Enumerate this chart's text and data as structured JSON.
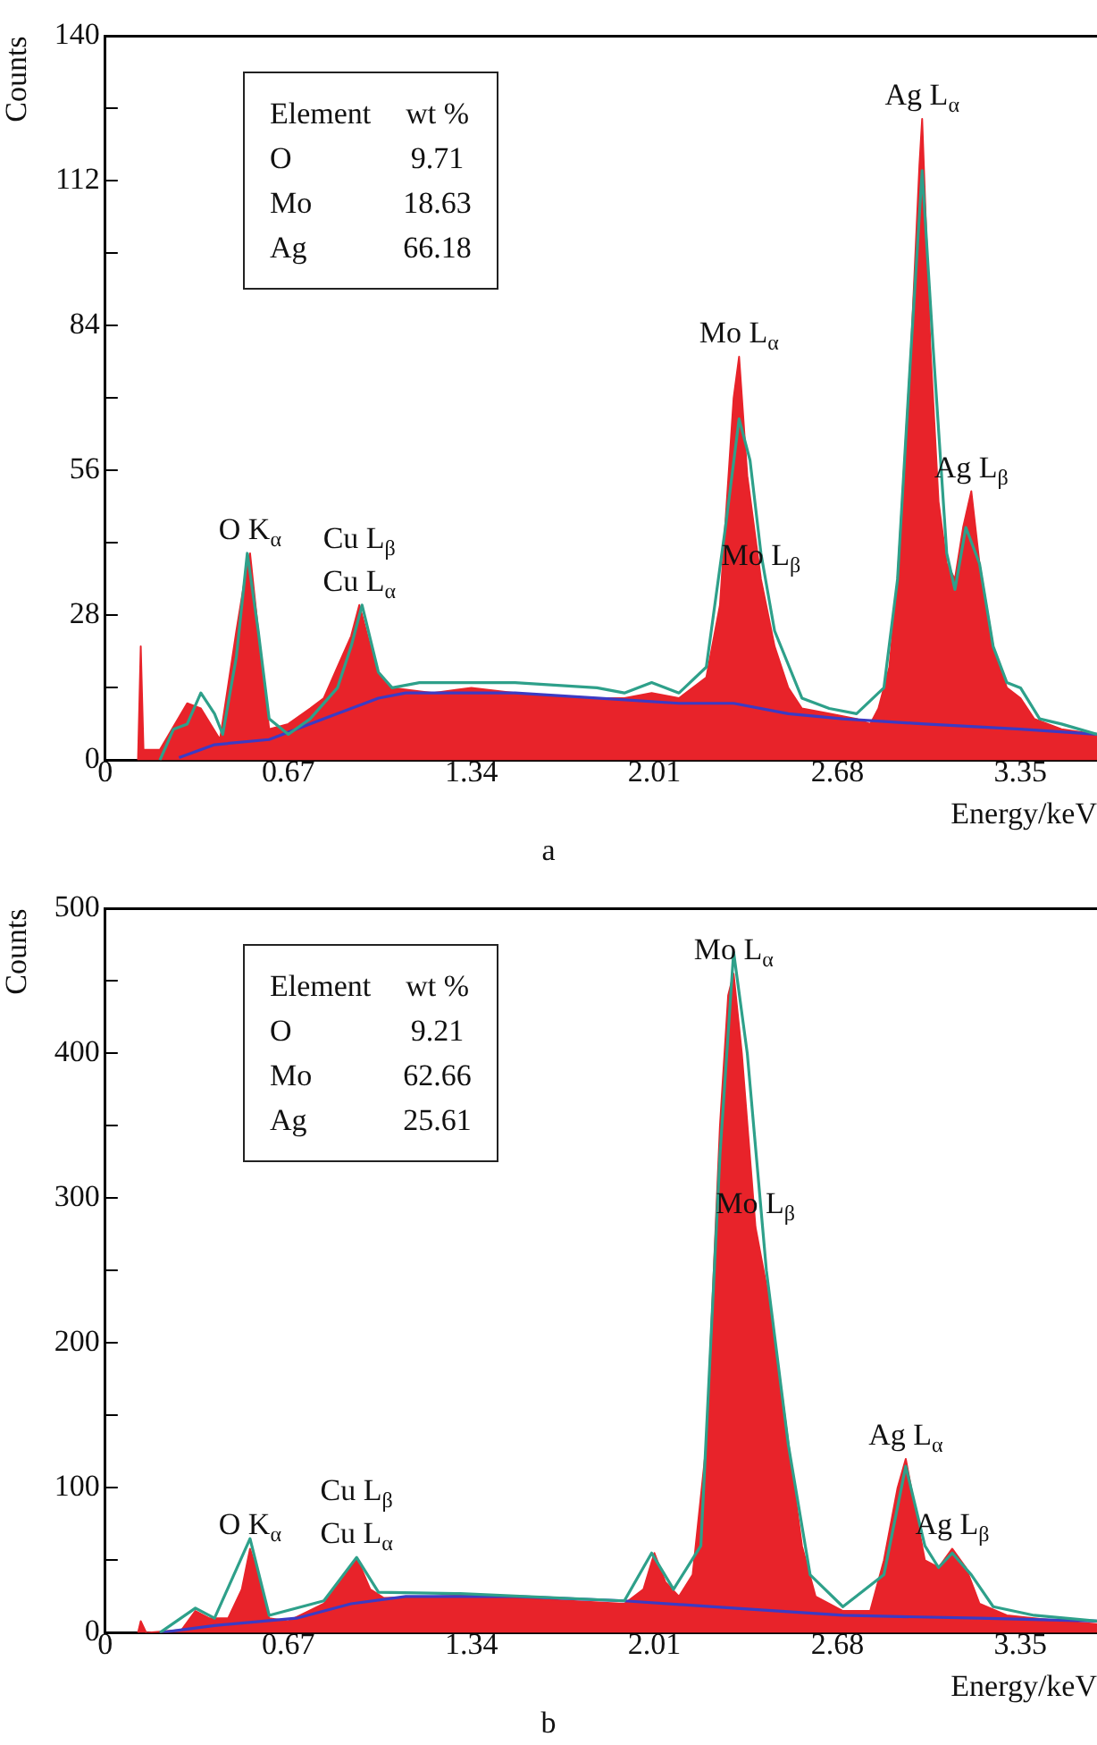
{
  "chart_data": [
    {
      "type": "area",
      "xlabel": "Energy/keV",
      "ylabel": "Counts",
      "xlim": [
        0,
        3.63
      ],
      "xticks": [
        0,
        0.67,
        1.34,
        2.01,
        2.68,
        3.35
      ],
      "ylim": [
        0,
        140
      ],
      "yticks": [
        0,
        {
          "value": 14,
          "label": null
        },
        28,
        {
          "value": 42,
          "label": null
        },
        56,
        {
          "value": 70,
          "label": null
        },
        84,
        {
          "value": 98,
          "label": null
        },
        112,
        {
          "value": 126,
          "label": null
        },
        140
      ],
      "series": [
        {
          "color": "#e8232a",
          "x": [
            0.12,
            0.13,
            0.14,
            0.2,
            0.3,
            0.35,
            0.42,
            0.48,
            0.52,
            0.53,
            0.56,
            0.6,
            0.67,
            0.75,
            0.8,
            0.85,
            0.9,
            0.93,
            0.97,
            1.0,
            1.05,
            1.2,
            1.34,
            1.5,
            1.7,
            1.9,
            2.0,
            2.1,
            2.2,
            2.25,
            2.3,
            2.32,
            2.35,
            2.4,
            2.45,
            2.5,
            2.55,
            2.65,
            2.75,
            2.8,
            2.83,
            2.87,
            2.9,
            2.95,
            2.98,
            2.99,
            3.02,
            3.05,
            3.08,
            3.11,
            3.14,
            3.17,
            3.2,
            3.25,
            3.3,
            3.35,
            3.4,
            3.5,
            3.63
          ],
          "values": [
            0,
            22,
            2,
            2,
            11,
            10,
            4,
            25,
            38,
            40,
            25,
            6,
            7,
            10,
            12,
            18,
            24,
            30,
            22,
            17,
            14,
            13,
            14,
            13,
            12,
            12,
            13,
            12,
            16,
            30,
            70,
            78,
            55,
            35,
            22,
            14,
            10,
            9,
            8,
            7,
            10,
            18,
            35,
            80,
            115,
            124,
            80,
            50,
            38,
            35,
            45,
            52,
            38,
            22,
            14,
            12,
            8,
            6,
            5
          ]
        },
        {
          "type": "line",
          "color": "#2ea08a",
          "x": [
            0.2,
            0.25,
            0.3,
            0.35,
            0.4,
            0.43,
            0.48,
            0.52,
            0.56,
            0.6,
            0.67,
            0.75,
            0.85,
            0.9,
            0.94,
            1.0,
            1.05,
            1.15,
            1.5,
            1.8,
            1.9,
            2.0,
            2.1,
            2.2,
            2.27,
            2.32,
            2.36,
            2.4,
            2.45,
            2.55,
            2.65,
            2.75,
            2.85,
            2.9,
            2.95,
            2.99,
            3.03,
            3.08,
            3.11,
            3.15,
            3.2,
            3.25,
            3.3,
            3.35,
            3.42,
            3.5,
            3.63
          ],
          "values": [
            0,
            6,
            7,
            13,
            9,
            5,
            20,
            40,
            25,
            8,
            5,
            8,
            14,
            22,
            30,
            17,
            14,
            15,
            15,
            14,
            13,
            15,
            13,
            18,
            45,
            66,
            58,
            40,
            25,
            12,
            10,
            9,
            14,
            35,
            80,
            114,
            80,
            40,
            33,
            45,
            38,
            22,
            15,
            14,
            8,
            7,
            5
          ]
        },
        {
          "type": "line",
          "color": "#3b3bc4",
          "x": [
            0.27,
            0.4,
            0.6,
            0.8,
            1.0,
            1.1,
            1.5,
            1.8,
            2.1,
            2.3,
            2.5,
            2.7,
            3.0,
            3.35,
            3.63
          ],
          "values": [
            0.5,
            3,
            4,
            8,
            12,
            13,
            13,
            12,
            11,
            11,
            9,
            8,
            7,
            6,
            5
          ]
        }
      ],
      "annotations": [
        "Element",
        "wt %",
        "O",
        "9.71",
        "Mo",
        "18.63",
        "Ag",
        "66.18",
        "a",
        {
          "text": "O K$_{α}$",
          "x": 0.53,
          "y": 40
        },
        {
          "text": "Cu L$_{β}$",
          "x": 0.93,
          "y": 30
        },
        {
          "text": "Cu L$_{α}$",
          "x": 0.93,
          "y": 30
        },
        {
          "text": "Mo L$_{α}$",
          "x": 2.32,
          "y": 78
        },
        {
          "text": "Mo L$_{β}$",
          "x": 2.4,
          "y": 35
        },
        {
          "text": "Ag L$_{α}$",
          "x": 2.99,
          "y": 124
        },
        {
          "text": "Ag L$_{β}$",
          "x": 3.17,
          "y": 52
        }
      ]
    },
    {
      "type": "area",
      "xlabel": "Energy/keV",
      "ylabel": "Counts",
      "xlim": [
        0,
        3.63
      ],
      "xticks": [
        0,
        0.67,
        1.34,
        2.01,
        2.68,
        3.35
      ],
      "ylim": [
        0,
        500
      ],
      "yticks": [
        0,
        {
          "value": 50,
          "label": null
        },
        100,
        {
          "value": 150,
          "label": null
        },
        200,
        {
          "value": 250,
          "label": null
        },
        300,
        {
          "value": 350,
          "label": null
        },
        400,
        {
          "value": 450,
          "label": null
        },
        500
      ],
      "series": [
        {
          "color": "#e8232a",
          "x": [
            0.12,
            0.13,
            0.15,
            0.28,
            0.33,
            0.38,
            0.45,
            0.5,
            0.53,
            0.56,
            0.6,
            0.67,
            0.8,
            0.88,
            0.92,
            0.97,
            1.02,
            1.2,
            1.34,
            1.5,
            1.7,
            1.9,
            1.97,
            2.01,
            2.05,
            2.1,
            2.15,
            2.2,
            2.25,
            2.28,
            2.3,
            2.33,
            2.38,
            2.42,
            2.48,
            2.55,
            2.6,
            2.7,
            2.8,
            2.85,
            2.9,
            2.93,
            2.97,
            3.0,
            3.05,
            3.1,
            3.15,
            3.2,
            3.3,
            3.4,
            3.5,
            3.63
          ],
          "values": [
            0,
            8,
            0,
            2,
            15,
            10,
            10,
            30,
            58,
            40,
            10,
            8,
            20,
            40,
            52,
            30,
            24,
            25,
            26,
            24,
            22,
            20,
            30,
            55,
            35,
            25,
            40,
            130,
            350,
            440,
            455,
            400,
            280,
            240,
            160,
            60,
            25,
            15,
            15,
            50,
            100,
            120,
            80,
            50,
            45,
            58,
            45,
            20,
            12,
            10,
            8,
            6
          ]
        },
        {
          "type": "line",
          "color": "#2ea08a",
          "x": [
            0.2,
            0.33,
            0.4,
            0.53,
            0.6,
            0.8,
            0.92,
            1.0,
            1.3,
            1.9,
            2.0,
            2.08,
            2.18,
            2.25,
            2.3,
            2.35,
            2.42,
            2.5,
            2.58,
            2.7,
            2.85,
            2.93,
            3.0,
            3.05,
            3.1,
            3.17,
            3.25,
            3.4,
            3.63
          ],
          "values": [
            0,
            17,
            10,
            65,
            12,
            22,
            52,
            28,
            27,
            22,
            55,
            30,
            60,
            330,
            470,
            400,
            250,
            130,
            40,
            18,
            40,
            115,
            60,
            45,
            55,
            40,
            18,
            12,
            8
          ]
        },
        {
          "type": "line",
          "color": "#3b3bc4",
          "x": [
            0.2,
            0.4,
            0.7,
            0.9,
            1.1,
            1.5,
            1.9,
            2.3,
            2.7,
            3.2,
            3.63
          ],
          "values": [
            0,
            5,
            10,
            20,
            25,
            25,
            22,
            17,
            12,
            10,
            8
          ]
        }
      ],
      "annotations": [
        "Element",
        "wt %",
        "O",
        "9.21",
        "Mo",
        "62.66",
        "Ag",
        "25.61",
        "b",
        {
          "text": "O K$_{α}$",
          "x": 0.53,
          "y": 58
        },
        {
          "text": "Cu L$_{β}$",
          "x": 0.92,
          "y": 52
        },
        {
          "text": "Cu L$_{α}$",
          "x": 0.92,
          "y": 52
        },
        {
          "text": "Mo L$_{α}$",
          "x": 2.3,
          "y": 455
        },
        {
          "text": "Mo L$_{β}$",
          "x": 2.38,
          "y": 280
        },
        {
          "text": "Ag L$_{α}$",
          "x": 2.93,
          "y": 120
        },
        {
          "text": "Ag L$_{β}$",
          "x": 3.1,
          "y": 58
        }
      ]
    }
  ]
}
